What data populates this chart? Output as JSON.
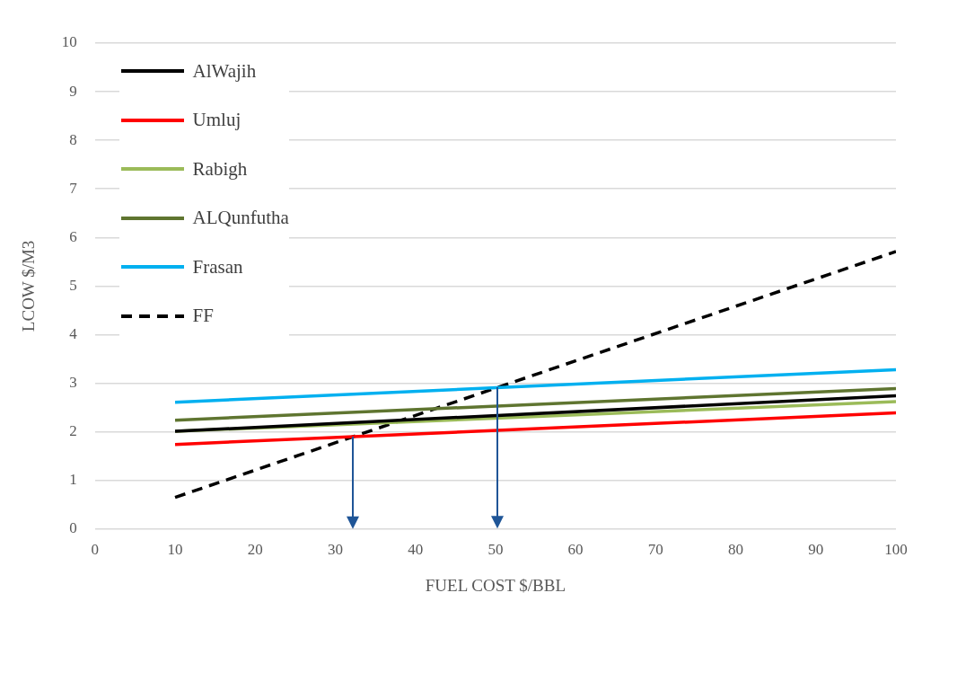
{
  "chart_data": {
    "type": "line",
    "xlabel": "FUEL COST $/BBL",
    "ylabel": "LCOW $/M3",
    "xlim": [
      0,
      100
    ],
    "xticks": [
      0,
      10,
      20,
      30,
      40,
      50,
      60,
      70,
      80,
      90,
      100
    ],
    "ylim": [
      0,
      10
    ],
    "yticks": [
      0,
      1,
      2,
      3,
      4,
      5,
      6,
      7,
      8,
      9,
      10
    ],
    "grid": "y",
    "legend": "top left",
    "marker": "none",
    "x": [
      10,
      100
    ],
    "series": [
      {
        "name": "AlWajih",
        "color": "#000000",
        "values": [
          2.01,
          2.74
        ]
      },
      {
        "name": "Umluj",
        "color": "#ff0000",
        "values": [
          1.74,
          2.39
        ]
      },
      {
        "name": "Rabigh",
        "color": "#9bbb59",
        "values": [
          2.01,
          2.62
        ]
      },
      {
        "name": "ALQunfutha",
        "color": "#5f7530",
        "values": [
          2.24,
          2.89
        ]
      },
      {
        "name": "Frasan",
        "color": "#00b0f0",
        "values": [
          2.61,
          3.28
        ]
      },
      {
        "name": "FF",
        "color": "#000000",
        "values": [
          0.65,
          5.71
        ],
        "line_style": "dashed"
      }
    ]
  }
}
